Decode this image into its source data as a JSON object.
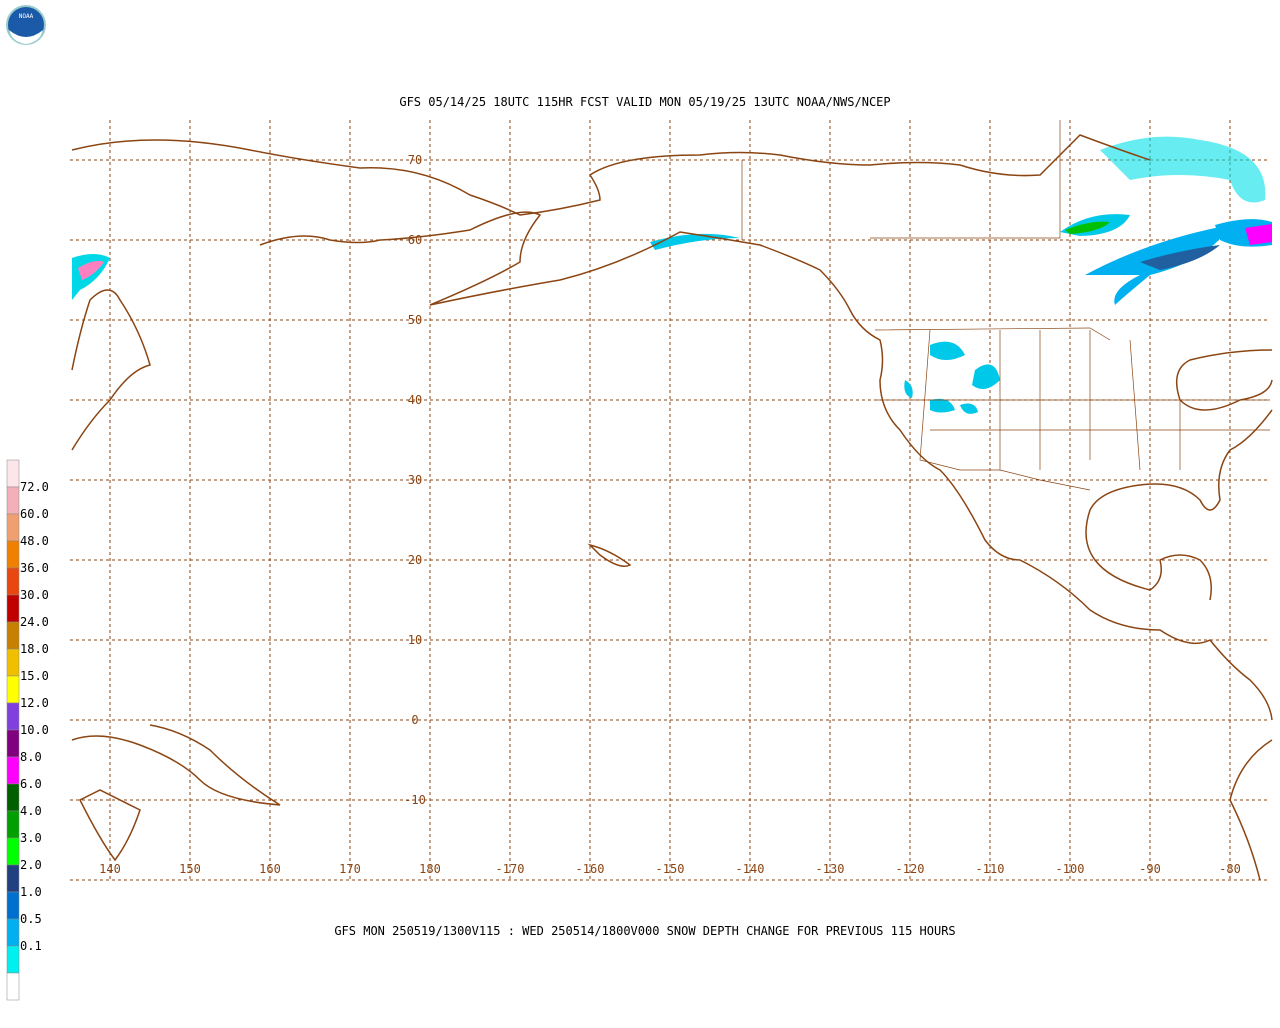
{
  "header": {
    "title": "GFS 05/14/25 18UTC 115HR FCST VALID MON 05/19/25 13UTC NOAA/NWS/NCEP"
  },
  "map": {
    "lat_labels": [
      "70",
      "60",
      "50",
      "40",
      "30",
      "20",
      "10",
      "0",
      "-10"
    ],
    "lon_labels": [
      "140",
      "150",
      "160",
      "170",
      "180",
      "-170",
      "-160",
      "-150",
      "-140",
      "-130",
      "-120",
      "-110",
      "-100",
      "-90",
      "-80"
    ]
  },
  "legend": {
    "labels": [
      "72.0",
      "60.0",
      "48.0",
      "36.0",
      "30.0",
      "24.0",
      "18.0",
      "15.0",
      "12.0",
      "10.0",
      "8.0",
      "6.0",
      "4.0",
      "3.0",
      "2.0",
      "1.0",
      "0.5",
      "0.1"
    ]
  },
  "footer": {
    "caption": "GFS MON 250519/1300V115 : WED 250514/1800V000 SNOW DEPTH CHANGE FOR PREVIOUS 115 HOURS"
  }
}
